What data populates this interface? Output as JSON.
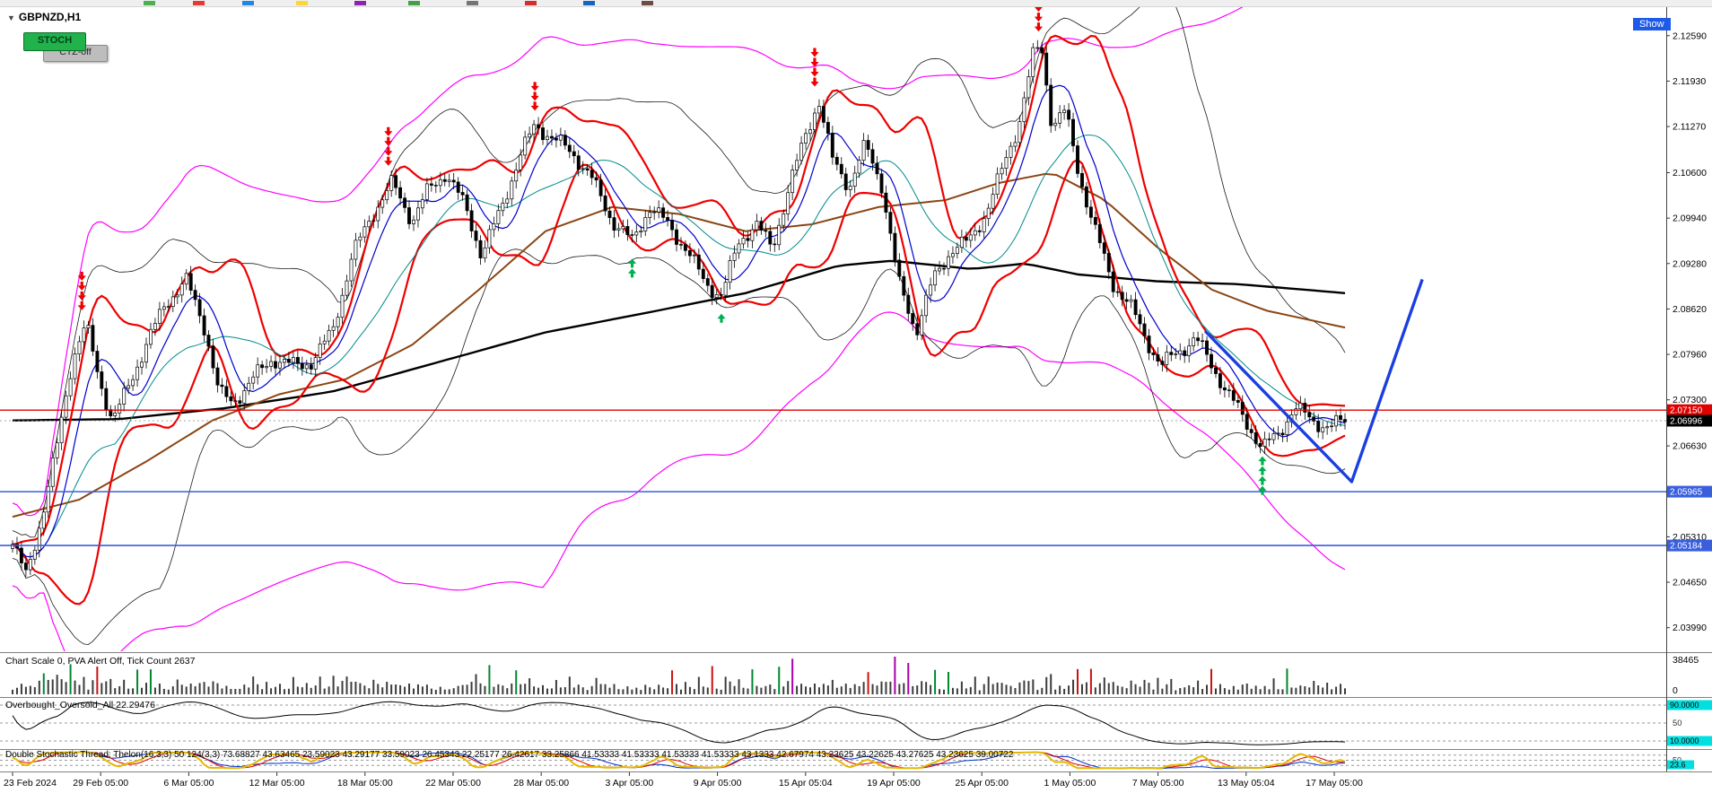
{
  "window": {
    "symbol": "GBPNZD,H1",
    "dropdown_icon": "▼",
    "show_button": "Show",
    "stoch_button": "STOCH",
    "ctz_button": "CTZ-off"
  },
  "price_axis": {
    "ticks": [
      "2.12590",
      "2.11930",
      "2.11270",
      "2.10600",
      "2.09940",
      "2.09280",
      "2.08620",
      "2.07960",
      "2.07300",
      "2.06630",
      "2.05970",
      "2.05310",
      "2.04650",
      "2.03990"
    ],
    "red_line_label": "2.07150",
    "bid_label": "2.06996",
    "blue_line_labels": [
      "2.05965",
      "2.05184"
    ]
  },
  "time_axis": {
    "labels": [
      "23 Feb 2024",
      "29 Feb 05:00",
      "6 Mar 05:00",
      "12 Mar 05:00",
      "18 Mar 05:00",
      "22 Mar 05:00",
      "28 Mar 05:00",
      "3 Apr 05:00",
      "9 Apr 05:00",
      "15 Apr 05:04",
      "19 Apr 05:00",
      "25 Apr 05:00",
      "1 May 05:00",
      "7 May 05:00",
      "13 May 05:04",
      "17 May 05:00"
    ]
  },
  "panels": {
    "volume": {
      "label": "Chart Scale 0,  PVA Alert Off,  Tick Count 2637",
      "max_label": "38465",
      "min_label": "0"
    },
    "oscillator": {
      "label": "Overbought_Oversold_All 22.29476",
      "levels": [
        90,
        50,
        10
      ],
      "level_labels": [
        "90.0000",
        "50",
        "10.0000"
      ],
      "value": 22.29476
    },
    "stochastic": {
      "label": "Double Stochastic Thread: Thelon(16,3,3) 50 124(3,3) 73.68827 43.63465 23.59023 43.29177 33.59023 26.45343 22.25177 26.42617 33.25866 41.53333 41.53333 41.53333 41.53333 43.1333 42.67974 43.23625 43.22625 43.27625 43.23625 39.00722",
      "levels": [
        80,
        50,
        20
      ],
      "level_labels": [
        "50"
      ],
      "value_label": "23.6",
      "value": 23.6
    }
  },
  "hlines": {
    "red": 2.0715,
    "bid": 2.06996,
    "blue": [
      2.05965,
      2.05184
    ]
  },
  "colors": {
    "bull": "#ffffff",
    "bear": "#000000",
    "wick": "#000000",
    "ma_fast": "#0000cd",
    "ma_teal": "#008b8b",
    "ma_brown": "#8b4513",
    "ma_slow": "#000000",
    "channel": "#ee0000",
    "band_inner": "#1a1a1a",
    "band_outer": "#ff00ff",
    "hline_red": "#e00000",
    "hline_blue": "#3a5fdd",
    "trend": "#1a3fe0",
    "sell_arrow": "#ee0000",
    "buy_arrow": "#00b050",
    "label_red_bg": "#e00000",
    "label_black_bg": "#000000",
    "label_blue_bg": "#3a5fdd",
    "label_cyan_bg": "#00e0e0",
    "osc_line": "#000000",
    "sto_yellow": "#e6b800",
    "sto_red": "#dd0000",
    "sto_blue": "#0033cc",
    "volume_base": "#3c3c3c",
    "volume_up": "#00882f",
    "volume_down": "#cc1111",
    "volume_spike": "#aa00aa"
  },
  "chart_data": {
    "type": "candlestick",
    "symbol": "GBPNZD",
    "timeframe": "H1",
    "price_min": 2.03647,
    "price_max": 2.13004,
    "price_ticks": [
      2.1259,
      2.1193,
      2.1127,
      2.106,
      2.0994,
      2.0928,
      2.0862,
      2.0796,
      2.073,
      2.0663,
      2.0597,
      2.0531,
      2.0465,
      2.0399
    ],
    "candles_n": 300,
    "wiggle": [
      0.0008,
      0.0005
    ],
    "close_anchors": [
      [
        0,
        2.052
      ],
      [
        0.01,
        2.0475
      ],
      [
        0.022,
        2.056
      ],
      [
        0.033,
        2.066
      ],
      [
        0.045,
        2.079
      ],
      [
        0.055,
        2.084
      ],
      [
        0.065,
        2.076
      ],
      [
        0.075,
        2.07
      ],
      [
        0.085,
        2.074
      ],
      [
        0.1,
        2.081
      ],
      [
        0.115,
        2.087
      ],
      [
        0.13,
        2.0905
      ],
      [
        0.145,
        2.083
      ],
      [
        0.155,
        2.074
      ],
      [
        0.165,
        2.0725
      ],
      [
        0.18,
        2.076
      ],
      [
        0.195,
        2.079
      ],
      [
        0.21,
        2.078
      ],
      [
        0.225,
        2.0785
      ],
      [
        0.24,
        2.083
      ],
      [
        0.255,
        2.094
      ],
      [
        0.27,
        2.1
      ],
      [
        0.285,
        2.1045
      ],
      [
        0.3,
        2.099
      ],
      [
        0.312,
        2.1035
      ],
      [
        0.325,
        2.106
      ],
      [
        0.34,
        2.101
      ],
      [
        0.352,
        2.094
      ],
      [
        0.365,
        2.1
      ],
      [
        0.38,
        2.108
      ],
      [
        0.392,
        2.113
      ],
      [
        0.405,
        2.111
      ],
      [
        0.42,
        2.109
      ],
      [
        0.435,
        2.105
      ],
      [
        0.45,
        2.099
      ],
      [
        0.465,
        2.096
      ],
      [
        0.478,
        2.101
      ],
      [
        0.492,
        2.0985
      ],
      [
        0.505,
        2.095
      ],
      [
        0.52,
        2.09
      ],
      [
        0.532,
        2.088
      ],
      [
        0.545,
        2.096
      ],
      [
        0.558,
        2.0985
      ],
      [
        0.57,
        2.095
      ],
      [
        0.583,
        2.104
      ],
      [
        0.596,
        2.112
      ],
      [
        0.605,
        2.1165
      ],
      [
        0.615,
        2.108
      ],
      [
        0.628,
        2.104
      ],
      [
        0.64,
        2.11
      ],
      [
        0.652,
        2.1045
      ],
      [
        0.665,
        2.09
      ],
      [
        0.678,
        2.083
      ],
      [
        0.69,
        2.09
      ],
      [
        0.705,
        2.095
      ],
      [
        0.718,
        2.096
      ],
      [
        0.73,
        2.1
      ],
      [
        0.742,
        2.106
      ],
      [
        0.755,
        2.113
      ],
      [
        0.766,
        2.123
      ],
      [
        0.772,
        2.1245
      ],
      [
        0.78,
        2.113
      ],
      [
        0.79,
        2.115
      ],
      [
        0.8,
        2.106
      ],
      [
        0.812,
        2.098
      ],
      [
        0.825,
        2.09
      ],
      [
        0.838,
        2.087
      ],
      [
        0.85,
        2.082
      ],
      [
        0.862,
        2.078
      ],
      [
        0.875,
        2.08
      ],
      [
        0.888,
        2.082
      ],
      [
        0.9,
        2.078
      ],
      [
        0.912,
        2.074
      ],
      [
        0.925,
        2.07
      ],
      [
        0.938,
        2.066
      ],
      [
        0.95,
        2.068
      ],
      [
        0.962,
        2.072
      ],
      [
        0.975,
        2.07
      ],
      [
        0.988,
        2.069
      ],
      [
        1,
        2.07
      ]
    ],
    "ma_black_anchors": [
      [
        0,
        2.07
      ],
      [
        0.08,
        2.0702
      ],
      [
        0.16,
        2.0718
      ],
      [
        0.24,
        2.0742
      ],
      [
        0.32,
        2.0785
      ],
      [
        0.4,
        2.0828
      ],
      [
        0.48,
        2.0858
      ],
      [
        0.55,
        2.0885
      ],
      [
        0.62,
        2.0925
      ],
      [
        0.66,
        2.0932
      ],
      [
        0.72,
        2.092
      ],
      [
        0.76,
        2.0928
      ],
      [
        0.8,
        2.0912
      ],
      [
        0.86,
        2.0902
      ],
      [
        0.92,
        2.0898
      ],
      [
        1,
        2.0885
      ]
    ],
    "ma_brown_anchors": [
      [
        0,
        2.056
      ],
      [
        0.05,
        2.0585
      ],
      [
        0.1,
        2.064
      ],
      [
        0.15,
        2.07
      ],
      [
        0.2,
        2.0738
      ],
      [
        0.25,
        2.076
      ],
      [
        0.3,
        2.081
      ],
      [
        0.35,
        2.089
      ],
      [
        0.4,
        2.0975
      ],
      [
        0.45,
        2.101
      ],
      [
        0.5,
        2.1
      ],
      [
        0.55,
        2.0975
      ],
      [
        0.6,
        2.0985
      ],
      [
        0.65,
        2.101
      ],
      [
        0.7,
        2.102
      ],
      [
        0.74,
        2.1045
      ],
      [
        0.78,
        2.106
      ],
      [
        0.82,
        2.102
      ],
      [
        0.86,
        2.095
      ],
      [
        0.9,
        2.089
      ],
      [
        0.94,
        2.086
      ],
      [
        1,
        2.0835
      ]
    ],
    "trendline": [
      [
        0.895,
        2.083
      ],
      [
        1.005,
        2.0611
      ],
      [
        1.058,
        2.0905
      ]
    ],
    "signals": {
      "sell": [
        [
          0.052,
          2.086,
          4
        ],
        [
          0.282,
          2.107,
          4
        ],
        [
          0.392,
          2.115,
          3
        ],
        [
          0.602,
          2.1185,
          4
        ],
        [
          0.77,
          2.1265,
          3
        ]
      ],
      "buy": [
        [
          0.465,
          2.0935,
          2
        ],
        [
          0.532,
          2.0855,
          1
        ],
        [
          0.938,
          2.0648,
          4
        ]
      ]
    },
    "volume": {
      "max": 38465,
      "tick_count": 2637
    }
  }
}
